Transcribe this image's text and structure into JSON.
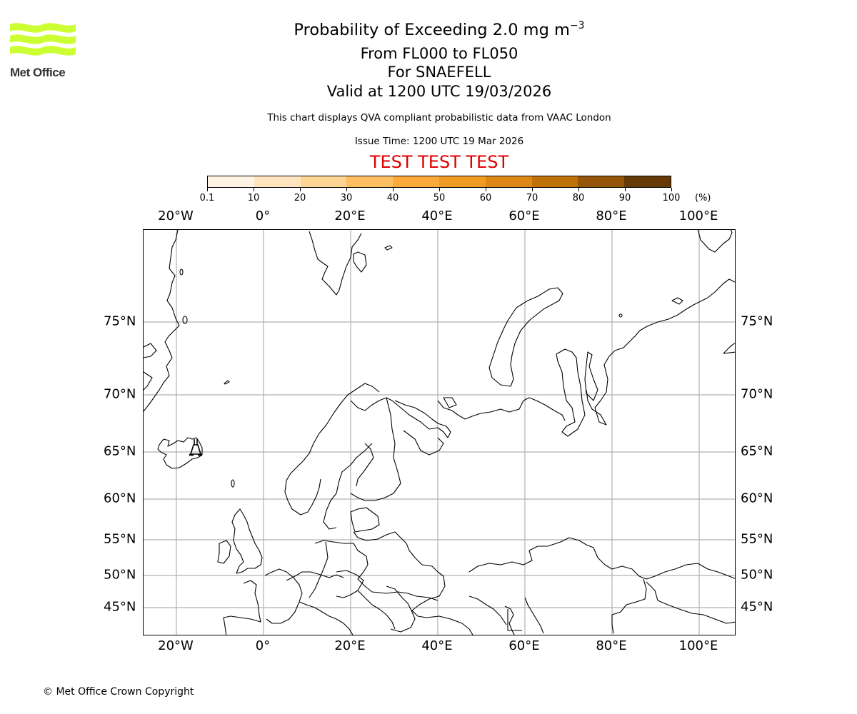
{
  "logo": {
    "text": "Met Office",
    "wave_color": "#ccff33",
    "text_color": "#333333"
  },
  "header": {
    "title_prefix": "Probability of Exceeding 2.0 mg m",
    "title_superscript": "−3",
    "flight_levels": "From FL000 to FL050",
    "volcano": "For SNAEFELL",
    "valid_time": "Valid at 1200 UTC 19/03/2026",
    "description": "This chart displays QVA compliant probabilistic data from VAAC London",
    "issue_time": "Issue Time: 1200 UTC 19 Mar 2026",
    "test_banner": "TEST TEST TEST",
    "test_banner_color": "#dd0000"
  },
  "colorbar": {
    "unit": "(%)",
    "ticks": [
      "0.1",
      "10",
      "20",
      "30",
      "40",
      "50",
      "60",
      "70",
      "80",
      "90",
      "100"
    ],
    "colors": [
      "#fff4e3",
      "#fee5c0",
      "#fed494",
      "#febf62",
      "#fba93a",
      "#f09b24",
      "#dd8717",
      "#c1710a",
      "#95560a",
      "#653a07"
    ]
  },
  "map": {
    "projection": "Polar stereographic / conic view of Europe & Arctic",
    "lon_labels": [
      "20°W",
      "0°",
      "20°E",
      "40°E",
      "60°E",
      "80°E",
      "100°E"
    ],
    "lat_labels": [
      "75°N",
      "70°N",
      "65°N",
      "60°N",
      "55°N",
      "50°N",
      "45°N"
    ],
    "gridline_color": "#b0b0b0",
    "coastline_color": "#000000",
    "source_marker": {
      "name": "Snaefell volcano symbol",
      "location": "Eastern Iceland"
    },
    "probability_contours": "none visible"
  },
  "chart_data": {
    "type": "heatmap",
    "title": "Probability of Exceeding 2.0 mg m−3",
    "subtitle": [
      "From FL000 to FL050",
      "For SNAEFELL",
      "Valid at 1200 UTC 19/03/2026"
    ],
    "colorbar_levels": [
      0.1,
      10,
      20,
      30,
      40,
      50,
      60,
      70,
      80,
      90,
      100
    ],
    "colorbar_unit": "%",
    "x_ticks": [
      "20°W",
      "0°",
      "20°E",
      "40°E",
      "60°E",
      "80°E",
      "100°E"
    ],
    "y_ticks": [
      "75°N",
      "70°N",
      "65°N",
      "60°N",
      "55°N",
      "50°N",
      "45°N"
    ],
    "grid": true,
    "values": [],
    "note": "No probability field shaded on map (empty field)"
  },
  "footer": {
    "copyright": "© Met Office Crown Copyright"
  }
}
